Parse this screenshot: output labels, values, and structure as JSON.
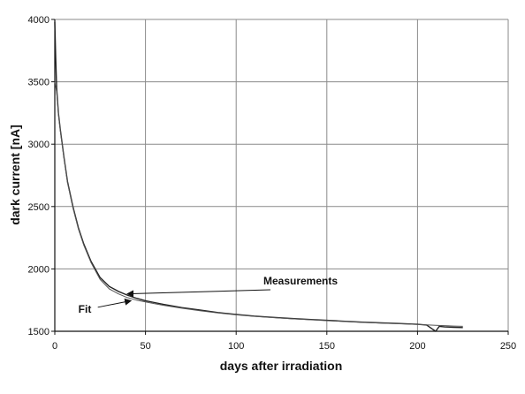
{
  "chart_data": {
    "type": "line",
    "title": "",
    "xlabel": "days after irradiation",
    "ylabel": "dark current [nA]",
    "xlim": [
      0,
      250
    ],
    "ylim": [
      1500,
      4000
    ],
    "x_ticks": [
      0,
      50,
      100,
      150,
      200,
      250
    ],
    "y_ticks": [
      1500,
      2000,
      2500,
      3000,
      3500,
      4000
    ],
    "grid": true,
    "series": [
      {
        "name": "Measurements",
        "x": [
          0,
          0.5,
          1,
          2,
          3,
          5,
          7,
          10,
          13,
          16,
          20,
          25,
          30,
          35,
          40,
          45,
          50,
          55,
          60,
          70,
          80,
          90,
          100,
          110,
          120,
          130,
          140,
          150,
          160,
          170,
          180,
          190,
          200,
          205,
          208,
          210,
          212,
          215,
          220,
          225
        ],
        "y": [
          3980,
          3700,
          3450,
          3250,
          3120,
          2900,
          2700,
          2500,
          2330,
          2200,
          2060,
          1930,
          1860,
          1820,
          1790,
          1765,
          1745,
          1730,
          1715,
          1690,
          1670,
          1650,
          1635,
          1622,
          1612,
          1603,
          1595,
          1588,
          1580,
          1573,
          1567,
          1562,
          1556,
          1550,
          1520,
          1500,
          1540,
          1535,
          1532,
          1530
        ]
      },
      {
        "name": "Fit",
        "x": [
          0,
          1,
          2,
          3,
          5,
          7,
          10,
          13,
          16,
          20,
          25,
          30,
          35,
          40,
          45,
          50,
          55,
          60,
          70,
          80,
          90,
          100,
          110,
          120,
          130,
          140,
          150,
          160,
          170,
          180,
          190,
          200,
          210,
          220,
          225
        ],
        "y": [
          3500,
          3420,
          3240,
          3110,
          2890,
          2690,
          2490,
          2320,
          2190,
          2050,
          1915,
          1840,
          1800,
          1770,
          1750,
          1735,
          1722,
          1708,
          1685,
          1665,
          1647,
          1632,
          1620,
          1610,
          1601,
          1593,
          1585,
          1578,
          1571,
          1565,
          1560,
          1555,
          1548,
          1542,
          1540
        ]
      }
    ],
    "annotations": [
      {
        "text": "Measurements",
        "x": 115,
        "y": 1875,
        "arrow_to": [
          40,
          1800
        ]
      },
      {
        "text": "Fit",
        "x": 13,
        "y": 1650,
        "arrow_to": [
          42,
          1745
        ]
      }
    ]
  }
}
